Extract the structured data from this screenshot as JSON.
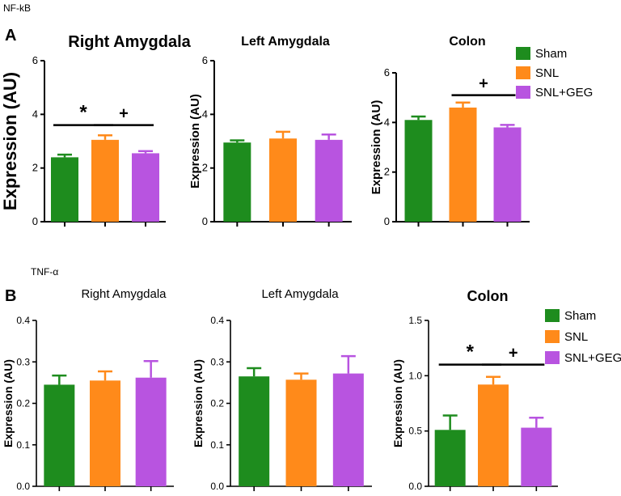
{
  "figure": {
    "section_a_label": "A",
    "section_b_label": "B",
    "section_a_name": "NF-kB",
    "section_b_name": "TNF-α"
  },
  "legend": {
    "entries": [
      {
        "name": "Sham",
        "color": "#1e8c1e"
      },
      {
        "name": "SNL",
        "color": "#ff8a1a"
      },
      {
        "name": "SNL+GEG",
        "color": "#b854e0"
      }
    ]
  },
  "chart_data": [
    {
      "type": "bar",
      "title": "Right Amygdala",
      "ylabel": "Expression (AU)",
      "categories": [
        "Sham",
        "SNL",
        "SNL+GEG"
      ],
      "values": [
        2.4,
        3.05,
        2.55
      ],
      "errors": [
        0.1,
        0.17,
        0.08
      ],
      "ylim": [
        0,
        6
      ],
      "yticks": [
        "0",
        "2",
        "4",
        "6"
      ],
      "ytick_values": [
        0,
        2,
        4,
        6
      ],
      "annotations": [
        {
          "label": "*",
          "from": 0,
          "to": 1,
          "y": 3.6
        },
        {
          "label": "+",
          "from": 1,
          "to": 2,
          "y": 3.6
        }
      ]
    },
    {
      "type": "bar",
      "title": "Left Amygdala",
      "ylabel": "Expression (AU)",
      "categories": [
        "Sham",
        "SNL",
        "SNL+GEG"
      ],
      "values": [
        2.95,
        3.1,
        3.05
      ],
      "errors": [
        0.08,
        0.25,
        0.2
      ],
      "ylim": [
        0,
        6
      ],
      "yticks": [
        "0",
        "2",
        "4",
        "6"
      ],
      "ytick_values": [
        0,
        2,
        4,
        6
      ],
      "annotations": []
    },
    {
      "type": "bar",
      "title": "Colon",
      "ylabel": "Expression (AU)",
      "categories": [
        "Sham",
        "SNL",
        "SNL+GEG"
      ],
      "values": [
        4.1,
        4.6,
        3.8
      ],
      "errors": [
        0.14,
        0.2,
        0.1
      ],
      "ylim": [
        0,
        6
      ],
      "yticks": [
        "0",
        "2",
        "4",
        "6"
      ],
      "ytick_values": [
        0,
        2,
        4,
        6
      ],
      "annotations": [
        {
          "label": "+",
          "from": 1,
          "to": 2,
          "y": 5.1
        }
      ]
    },
    {
      "type": "bar",
      "title": "Right Amygdala",
      "ylabel": "Expression (AU)",
      "categories": [
        "Sham",
        "SNL",
        "SNL+GEG"
      ],
      "values": [
        0.245,
        0.255,
        0.262
      ],
      "errors": [
        0.022,
        0.022,
        0.04
      ],
      "ylim": [
        0,
        0.4
      ],
      "yticks": [
        "0.0",
        "0.1",
        "0.2",
        "0.3",
        "0.4"
      ],
      "ytick_values": [
        0,
        0.1,
        0.2,
        0.3,
        0.4
      ],
      "annotations": []
    },
    {
      "type": "bar",
      "title": "Left Amygdala",
      "ylabel": "Expression (AU)",
      "categories": [
        "Sham",
        "SNL",
        "SNL+GEG"
      ],
      "values": [
        0.265,
        0.257,
        0.272
      ],
      "errors": [
        0.02,
        0.015,
        0.042
      ],
      "ylim": [
        0,
        0.4
      ],
      "yticks": [
        "0.0",
        "0.1",
        "0.2",
        "0.3",
        "0.4"
      ],
      "ytick_values": [
        0,
        0.1,
        0.2,
        0.3,
        0.4
      ],
      "annotations": []
    },
    {
      "type": "bar",
      "title": "Colon",
      "ylabel": "Expression (AU)",
      "categories": [
        "Sham",
        "SNL",
        "SNL+GEG"
      ],
      "values": [
        0.51,
        0.92,
        0.53
      ],
      "errors": [
        0.13,
        0.07,
        0.09
      ],
      "ylim": [
        0,
        1.5
      ],
      "yticks": [
        "0.0",
        "0.5",
        "1.0",
        "1.5"
      ],
      "ytick_values": [
        0,
        0.5,
        1.0,
        1.5
      ],
      "annotations": [
        {
          "label": "*",
          "from": 0,
          "to": 1,
          "y": 1.1
        },
        {
          "label": "+",
          "from": 1,
          "to": 2,
          "y": 1.1
        }
      ]
    }
  ]
}
